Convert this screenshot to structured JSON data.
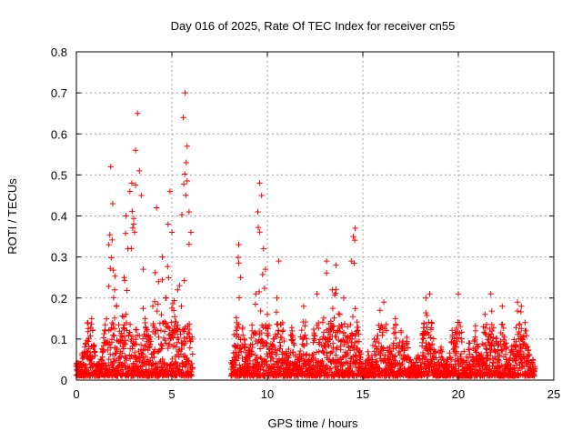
{
  "chart_data": {
    "type": "scatter",
    "title": "Day 016 of 2025, Rate Of TEC Index for receiver cn55",
    "xlabel": "GPS time / hours",
    "ylabel": "ROTI / TECUs",
    "xlim": [
      0,
      25
    ],
    "ylim": [
      0,
      0.8
    ],
    "x_ticks": [
      0,
      5,
      10,
      15,
      20,
      25
    ],
    "x_tick_labels": [
      "0",
      "5",
      "10",
      "15",
      "20",
      "25"
    ],
    "y_ticks": [
      0,
      0.1,
      0.2,
      0.3,
      0.4,
      0.5,
      0.6,
      0.7,
      0.8
    ],
    "y_tick_labels": [
      "0",
      "0.1",
      "0.2",
      "0.3",
      "0.4",
      "0.5",
      "0.6",
      "0.7",
      "0.8"
    ],
    "grid": true,
    "marker": "+",
    "series_color": "#ff0000",
    "data_gap_hours": [
      6.1,
      8.1
    ],
    "series": [
      {
        "name": "ROTI",
        "points": [
          [
            0.1,
            0.03
          ],
          [
            0.3,
            0.06
          ],
          [
            0.5,
            0.09
          ],
          [
            0.6,
            0.14
          ],
          [
            0.8,
            0.15
          ],
          [
            0.7,
            0.05
          ],
          [
            0.9,
            0.08
          ],
          [
            1.2,
            0.04
          ],
          [
            1.4,
            0.07
          ],
          [
            1.5,
            0.12
          ],
          [
            1.7,
            0.33
          ],
          [
            1.8,
            0.52
          ],
          [
            1.9,
            0.43
          ],
          [
            2.0,
            0.22
          ],
          [
            2.1,
            0.18
          ],
          [
            2.3,
            0.09
          ],
          [
            2.5,
            0.25
          ],
          [
            2.6,
            0.4
          ],
          [
            2.7,
            0.32
          ],
          [
            2.8,
            0.46
          ],
          [
            2.9,
            0.48
          ],
          [
            3.0,
            0.38
          ],
          [
            3.1,
            0.56
          ],
          [
            3.2,
            0.65
          ],
          [
            3.3,
            0.51
          ],
          [
            3.4,
            0.45
          ],
          [
            3.5,
            0.27
          ],
          [
            3.6,
            0.15
          ],
          [
            3.8,
            0.1
          ],
          [
            4.0,
            0.18
          ],
          [
            4.2,
            0.42
          ],
          [
            4.3,
            0.24
          ],
          [
            4.5,
            0.3
          ],
          [
            4.7,
            0.2
          ],
          [
            4.8,
            0.38
          ],
          [
            4.9,
            0.46
          ],
          [
            5.0,
            0.36
          ],
          [
            5.1,
            0.12
          ],
          [
            5.3,
            0.22
          ],
          [
            5.5,
            0.18
          ],
          [
            5.6,
            0.64
          ],
          [
            5.7,
            0.7
          ],
          [
            5.8,
            0.57
          ],
          [
            5.75,
            0.53
          ],
          [
            5.9,
            0.41
          ],
          [
            6.0,
            0.36
          ],
          [
            6.05,
            0.1
          ],
          [
            8.2,
            0.04
          ],
          [
            8.3,
            0.08
          ],
          [
            8.4,
            0.14
          ],
          [
            8.5,
            0.33
          ],
          [
            8.6,
            0.25
          ],
          [
            8.8,
            0.1
          ],
          [
            9.0,
            0.06
          ],
          [
            9.2,
            0.12
          ],
          [
            9.4,
            0.21
          ],
          [
            9.5,
            0.41
          ],
          [
            9.6,
            0.48
          ],
          [
            9.7,
            0.45
          ],
          [
            9.8,
            0.32
          ],
          [
            9.9,
            0.27
          ],
          [
            10.0,
            0.16
          ],
          [
            10.3,
            0.1
          ],
          [
            10.5,
            0.2
          ],
          [
            10.6,
            0.29
          ],
          [
            10.8,
            0.14
          ],
          [
            11.0,
            0.06
          ],
          [
            11.3,
            0.12
          ],
          [
            11.6,
            0.05
          ],
          [
            11.9,
            0.18
          ],
          [
            12.2,
            0.06
          ],
          [
            12.6,
            0.21
          ],
          [
            12.9,
            0.1
          ],
          [
            13.1,
            0.29
          ],
          [
            13.4,
            0.22
          ],
          [
            13.6,
            0.28
          ],
          [
            13.8,
            0.16
          ],
          [
            14.0,
            0.2
          ],
          [
            14.2,
            0.13
          ],
          [
            14.4,
            0.29
          ],
          [
            14.5,
            0.35
          ],
          [
            14.6,
            0.37
          ],
          [
            14.8,
            0.07
          ],
          [
            15.0,
            0.04
          ],
          [
            15.3,
            0.06
          ],
          [
            15.6,
            0.1
          ],
          [
            15.9,
            0.17
          ],
          [
            16.1,
            0.19
          ],
          [
            16.4,
            0.08
          ],
          [
            16.7,
            0.15
          ],
          [
            17.0,
            0.12
          ],
          [
            17.3,
            0.09
          ],
          [
            17.5,
            0.05
          ],
          [
            17.9,
            0.06
          ],
          [
            18.3,
            0.2
          ],
          [
            18.5,
            0.21
          ],
          [
            18.8,
            0.07
          ],
          [
            19.1,
            0.08
          ],
          [
            19.4,
            0.05
          ],
          [
            19.7,
            0.11
          ],
          [
            20.0,
            0.21
          ],
          [
            20.3,
            0.07
          ],
          [
            20.6,
            0.09
          ],
          [
            20.9,
            0.12
          ],
          [
            21.1,
            0.05
          ],
          [
            21.4,
            0.16
          ],
          [
            21.7,
            0.21
          ],
          [
            22.0,
            0.09
          ],
          [
            22.3,
            0.18
          ],
          [
            22.5,
            0.05
          ],
          [
            22.8,
            0.07
          ],
          [
            23.1,
            0.19
          ],
          [
            23.3,
            0.18
          ],
          [
            23.5,
            0.12
          ],
          [
            23.7,
            0.06
          ],
          [
            23.9,
            0.05
          ]
        ]
      }
    ]
  }
}
